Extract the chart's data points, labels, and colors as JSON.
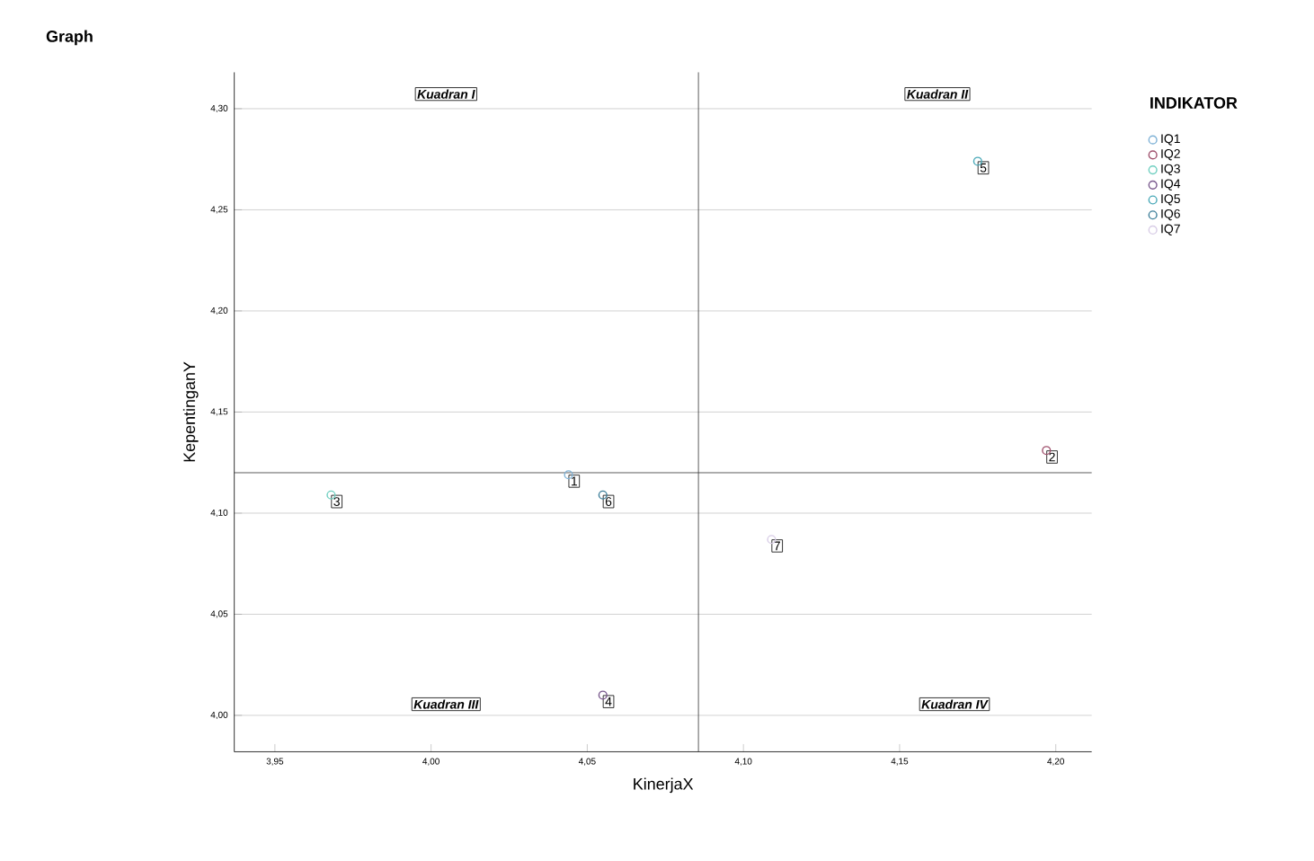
{
  "chart_data": {
    "type": "scatter",
    "title": "Graph",
    "xlabel": "KinerjaX",
    "ylabel": "KepentinganY",
    "legend_title": "INDIKATOR",
    "xlim": [
      3.937,
      4.2115
    ],
    "ylim": [
      3.982,
      4.318
    ],
    "xticks": [
      {
        "value": 3.95,
        "label": "3,95"
      },
      {
        "value": 4.0,
        "label": "4,00"
      },
      {
        "value": 4.05,
        "label": "4,05"
      },
      {
        "value": 4.1,
        "label": "4,10"
      },
      {
        "value": 4.15,
        "label": "4,15"
      },
      {
        "value": 4.2,
        "label": "4,20"
      }
    ],
    "yticks": [
      {
        "value": 4.0,
        "label": "4,00"
      },
      {
        "value": 4.05,
        "label": "4,05"
      },
      {
        "value": 4.1,
        "label": "4,10"
      },
      {
        "value": 4.15,
        "label": "4,15"
      },
      {
        "value": 4.2,
        "label": "4,20"
      },
      {
        "value": 4.25,
        "label": "4,25"
      },
      {
        "value": 4.3,
        "label": "4,30"
      }
    ],
    "grid": "y",
    "legend": "right",
    "marker": "circle",
    "series": [
      {
        "name": "IQ1",
        "color": "#7fb2d6",
        "x": [
          4.044
        ],
        "values": [
          4.119
        ]
      },
      {
        "name": "IQ2",
        "color": "#a0526e",
        "x": [
          4.197
        ],
        "values": [
          4.131
        ]
      },
      {
        "name": "IQ3",
        "color": "#6fcfc0",
        "x": [
          3.968
        ],
        "values": [
          4.109
        ]
      },
      {
        "name": "IQ4",
        "color": "#7a5a8e",
        "x": [
          4.055
        ],
        "values": [
          4.01
        ]
      },
      {
        "name": "IQ5",
        "color": "#4aa9b8",
        "x": [
          4.175
        ],
        "values": [
          4.274
        ]
      },
      {
        "name": "IQ6",
        "color": "#3e7f9a",
        "x": [
          4.055
        ],
        "values": [
          4.109
        ]
      },
      {
        "name": "IQ7",
        "color": "#d8cde6",
        "x": [
          4.109
        ],
        "values": [
          4.087
        ]
      }
    ],
    "ref_lines": [
      {
        "axis": "x",
        "value": 4.0856,
        "color": "#333333"
      },
      {
        "axis": "y",
        "value": 4.12,
        "color": "#333333"
      }
    ],
    "annotations": [
      {
        "text": "1",
        "x": 4.044,
        "y": 4.119
      },
      {
        "text": "2",
        "x": 4.197,
        "y": 4.131
      },
      {
        "text": "3",
        "x": 3.968,
        "y": 4.109
      },
      {
        "text": "4",
        "x": 4.055,
        "y": 4.01
      },
      {
        "text": "5",
        "x": 4.175,
        "y": 4.274
      },
      {
        "text": "6",
        "x": 4.055,
        "y": 4.109
      },
      {
        "text": "7",
        "x": 4.109,
        "y": 4.087
      },
      "Kuadran I",
      "Kuadran II",
      "Kuadran III",
      "Kuadran IV"
    ]
  }
}
